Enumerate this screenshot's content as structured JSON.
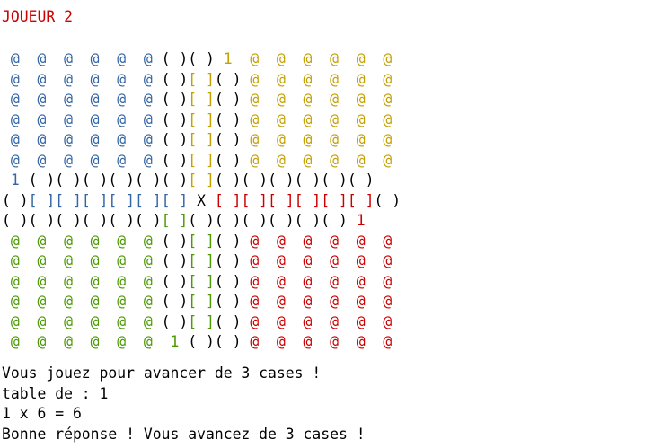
{
  "colors": {
    "r": "#cc0000",
    "b": "#3465a4",
    "y": "#c4a000",
    "g": "#4e9a06",
    "k": "#000000"
  },
  "header": "JOUEUR 2",
  "header_color": "#cc0000",
  "board": [
    [
      [
        "b",
        " @  @  @  @  @  @"
      ],
      [
        "k",
        " ( )( ) "
      ],
      [
        "y",
        "1"
      ],
      [
        "y",
        "  @  @  @  @  @  @"
      ]
    ],
    [
      [
        "b",
        " @  @  @  @  @  @"
      ],
      [
        "k",
        " ( )"
      ],
      [
        "y",
        "[ ]"
      ],
      [
        "k",
        "( )"
      ],
      [
        "y",
        " @  @  @  @  @  @"
      ]
    ],
    [
      [
        "b",
        " @  @  @  @  @  @"
      ],
      [
        "k",
        " ( )"
      ],
      [
        "y",
        "[ ]"
      ],
      [
        "k",
        "( )"
      ],
      [
        "y",
        " @  @  @  @  @  @"
      ]
    ],
    [
      [
        "b",
        " @  @  @  @  @  @"
      ],
      [
        "k",
        " ( )"
      ],
      [
        "y",
        "[ ]"
      ],
      [
        "k",
        "( )"
      ],
      [
        "y",
        " @  @  @  @  @  @"
      ]
    ],
    [
      [
        "b",
        " @  @  @  @  @  @"
      ],
      [
        "k",
        " ( )"
      ],
      [
        "y",
        "[ ]"
      ],
      [
        "k",
        "( )"
      ],
      [
        "y",
        " @  @  @  @  @  @"
      ]
    ],
    [
      [
        "b",
        " @  @  @  @  @  @"
      ],
      [
        "k",
        " ( )"
      ],
      [
        "y",
        "[ ]"
      ],
      [
        "k",
        "( )"
      ],
      [
        "y",
        " @  @  @  @  @  @"
      ]
    ],
    [
      [
        "b",
        " 1"
      ],
      [
        "k",
        " ( )( )( )( )( )( )"
      ],
      [
        "y",
        "[ ]"
      ],
      [
        "k",
        "( )( )( )( )( )( )"
      ]
    ],
    [
      [
        "k",
        "( )"
      ],
      [
        "b",
        "[ ][ ][ ][ ][ ][ ]"
      ],
      [
        "k",
        " X "
      ],
      [
        "r",
        "[ ][ ][ ][ ][ ][ ]"
      ],
      [
        "k",
        "( )"
      ]
    ],
    [
      [
        "k",
        "( )( )( )( )( )( )"
      ],
      [
        "g",
        "[ ]"
      ],
      [
        "k",
        "( )( )( )( )( )( ) "
      ],
      [
        "r",
        "1"
      ]
    ],
    [
      [
        "g",
        " @  @  @  @  @  @"
      ],
      [
        "k",
        " ( )"
      ],
      [
        "g",
        "[ ]"
      ],
      [
        "k",
        "( )"
      ],
      [
        "r",
        " @  @  @  @  @  @"
      ]
    ],
    [
      [
        "g",
        " @  @  @  @  @  @"
      ],
      [
        "k",
        " ( )"
      ],
      [
        "g",
        "[ ]"
      ],
      [
        "k",
        "( )"
      ],
      [
        "r",
        " @  @  @  @  @  @"
      ]
    ],
    [
      [
        "g",
        " @  @  @  @  @  @"
      ],
      [
        "k",
        " ( )"
      ],
      [
        "g",
        "[ ]"
      ],
      [
        "k",
        "( )"
      ],
      [
        "r",
        " @  @  @  @  @  @"
      ]
    ],
    [
      [
        "g",
        " @  @  @  @  @  @"
      ],
      [
        "k",
        " ( )"
      ],
      [
        "g",
        "[ ]"
      ],
      [
        "k",
        "( )"
      ],
      [
        "r",
        " @  @  @  @  @  @"
      ]
    ],
    [
      [
        "g",
        " @  @  @  @  @  @"
      ],
      [
        "k",
        " ( )"
      ],
      [
        "g",
        "[ ]"
      ],
      [
        "k",
        "( )"
      ],
      [
        "r",
        " @  @  @  @  @  @"
      ]
    ],
    [
      [
        "g",
        " @  @  @  @  @  @  1"
      ],
      [
        "k",
        " ( )( )"
      ],
      [
        "r",
        " @  @  @  @  @  @"
      ]
    ]
  ],
  "messages": [
    "Vous jouez pour avancer de 3 cases !",
    "table de : 1",
    "1 x 6 = 6",
    "Bonne réponse ! Vous avancez de 3 cases !"
  ]
}
